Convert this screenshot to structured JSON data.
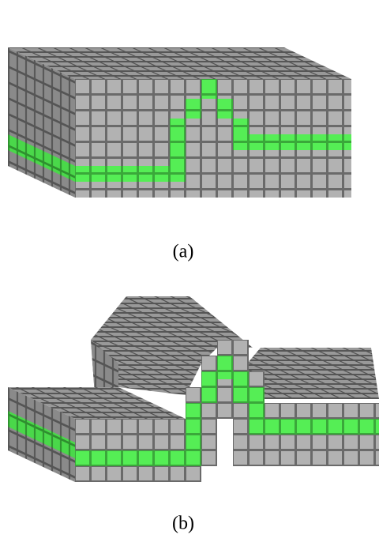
{
  "figure_a": {
    "caption": "(a)"
  },
  "figure_b": {
    "caption": "(b)"
  }
}
